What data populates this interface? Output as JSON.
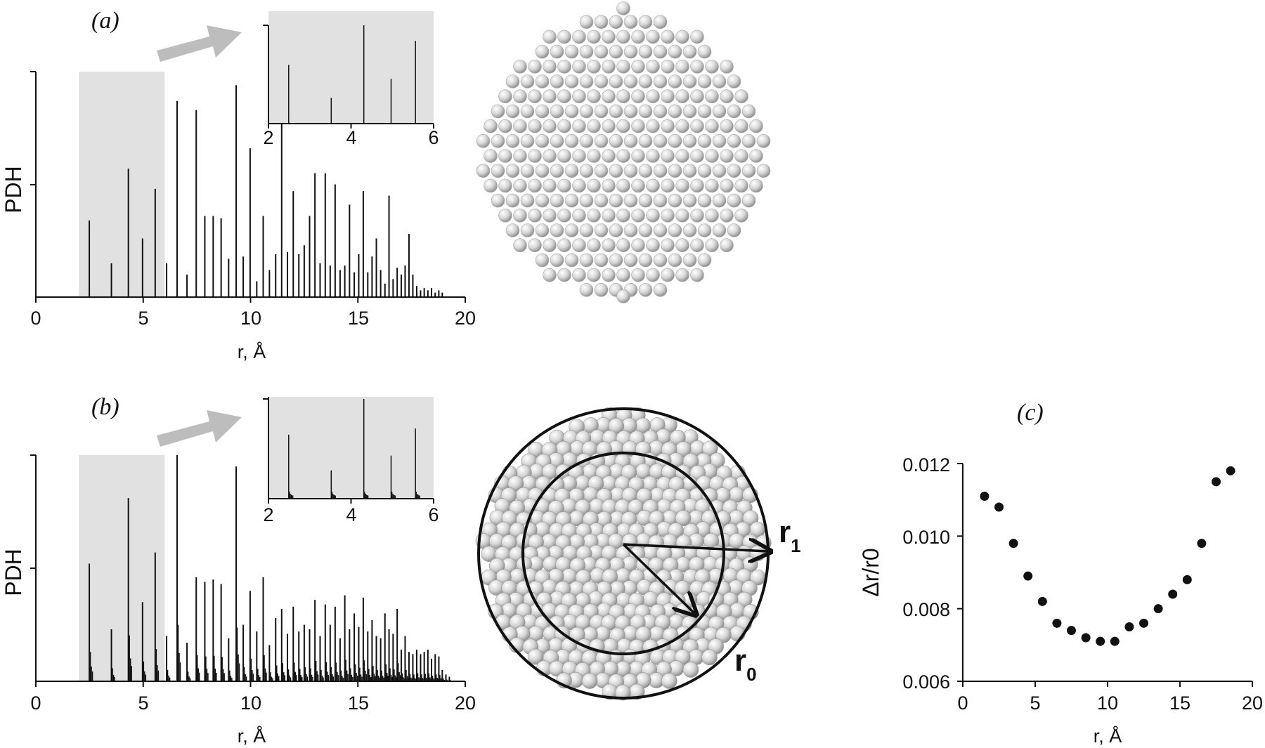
{
  "chart_data": [
    {
      "panel": "(a)",
      "type": "bar",
      "xlabel": "r, Å",
      "ylabel": "PDH",
      "xlim": [
        0,
        20
      ],
      "xticks": [
        "0",
        "5",
        "10",
        "15",
        "20"
      ],
      "highlight_range": [
        2,
        6
      ],
      "x": [
        2.49,
        3.52,
        4.31,
        4.97,
        5.56,
        6.09,
        6.58,
        7.04,
        7.47,
        7.87,
        8.26,
        8.63,
        8.98,
        9.33,
        9.66,
        9.98,
        10.29,
        10.59,
        10.88,
        11.17,
        11.45,
        11.72,
        11.99,
        12.25,
        12.5,
        12.75,
        13.0,
        13.24,
        13.48,
        13.71,
        13.94,
        14.17,
        14.39,
        14.61,
        14.83,
        15.04,
        15.25,
        15.46,
        15.66,
        15.86,
        16.06,
        16.26,
        16.45,
        16.64,
        16.83,
        17.02,
        17.2,
        17.38,
        17.56,
        17.74,
        17.92,
        18.09,
        18.26,
        18.43,
        18.6,
        18.77,
        18.93
      ],
      "values": [
        0.34,
        0.15,
        0.57,
        0.26,
        0.48,
        0.15,
        0.87,
        0.1,
        0.83,
        0.36,
        0.36,
        0.35,
        0.17,
        0.94,
        0.18,
        0.66,
        0.07,
        0.36,
        0.12,
        0.19,
        0.86,
        0.2,
        0.47,
        0.19,
        0.23,
        0.36,
        0.55,
        0.15,
        0.55,
        0.14,
        0.5,
        0.12,
        0.14,
        0.41,
        0.11,
        0.19,
        0.47,
        0.11,
        0.18,
        0.26,
        0.12,
        0.06,
        0.45,
        0.08,
        0.13,
        0.1,
        0.14,
        0.28,
        0.1,
        0.05,
        0.03,
        0.04,
        0.03,
        0.04,
        0.02,
        0.03,
        0.02
      ],
      "inset": {
        "xlim": [
          2,
          6
        ],
        "xticks": [
          "2",
          "4",
          "6"
        ]
      }
    },
    {
      "panel": "(b)",
      "type": "bar",
      "xlabel": "r, Å",
      "ylabel": "PDH",
      "xlim": [
        0,
        20
      ],
      "xticks": [
        "0",
        "5",
        "10",
        "15",
        "20"
      ],
      "highlight_range": [
        2,
        6
      ],
      "x": [
        2.49,
        3.52,
        4.31,
        4.97,
        5.56,
        6.09,
        6.58,
        7.04,
        7.47,
        7.87,
        8.26,
        8.63,
        8.98,
        9.33,
        9.66,
        9.98,
        10.29,
        10.59,
        10.88,
        11.17,
        11.45,
        11.72,
        11.99,
        12.25,
        12.5,
        12.75,
        13.0,
        13.24,
        13.48,
        13.71,
        13.94,
        14.17,
        14.39,
        14.61,
        14.83,
        15.04,
        15.25,
        15.46,
        15.66,
        15.86,
        16.06,
        16.26,
        16.45,
        16.64,
        16.83,
        17.02,
        17.2,
        17.38,
        17.56,
        17.74,
        17.92,
        18.09,
        18.26,
        18.43,
        18.6,
        18.77,
        18.93,
        19.1,
        19.26
      ],
      "values": [
        0.52,
        0.23,
        0.81,
        0.35,
        0.57,
        0.2,
        1.0,
        0.17,
        0.46,
        0.44,
        0.45,
        0.43,
        0.19,
        0.95,
        0.25,
        0.4,
        0.22,
        0.46,
        0.16,
        0.28,
        0.32,
        0.21,
        0.33,
        0.22,
        0.25,
        0.23,
        0.36,
        0.2,
        0.34,
        0.25,
        0.33,
        0.19,
        0.38,
        0.23,
        0.3,
        0.24,
        0.37,
        0.22,
        0.27,
        0.2,
        0.19,
        0.3,
        0.23,
        0.21,
        0.32,
        0.14,
        0.2,
        0.13,
        0.12,
        0.14,
        0.12,
        0.13,
        0.14,
        0.1,
        0.12,
        0.11,
        0.05,
        0.03,
        0.02
      ],
      "inset": {
        "xlim": [
          2,
          6
        ],
        "xticks": [
          "2",
          "4",
          "6"
        ]
      }
    },
    {
      "panel": "(c)",
      "type": "scatter",
      "xlabel": "r, Å",
      "ylabel": "Δr/r0",
      "xlim": [
        0,
        20
      ],
      "ylim": [
        0.006,
        0.012
      ],
      "xticks": [
        "0",
        "5",
        "10",
        "15",
        "20"
      ],
      "yticks": [
        "0.006",
        "0.008",
        "0.010",
        "0.012"
      ],
      "x": [
        1.5,
        2.5,
        3.5,
        4.5,
        5.5,
        6.5,
        7.5,
        8.5,
        9.5,
        10.5,
        11.5,
        12.5,
        13.5,
        14.5,
        15.5,
        16.5,
        17.5,
        18.5
      ],
      "y": [
        0.0111,
        0.0108,
        0.0098,
        0.0089,
        0.0082,
        0.0076,
        0.0074,
        0.0072,
        0.0071,
        0.0071,
        0.0075,
        0.0076,
        0.008,
        0.0084,
        0.0088,
        0.0098,
        0.0115,
        0.0118
      ]
    }
  ],
  "labels": {
    "a": "(a)",
    "b": "(b)",
    "c": "(c)",
    "r1_main": "r",
    "r1_sub": "1",
    "r0_main": "r",
    "r0_sub": "0"
  },
  "colors": {
    "shade": "#e1e1e1",
    "arrow": "#bdbdbd",
    "ink": "#111111",
    "sphere_light": "#ffffff",
    "sphere_dark": "#8f8f8f"
  }
}
